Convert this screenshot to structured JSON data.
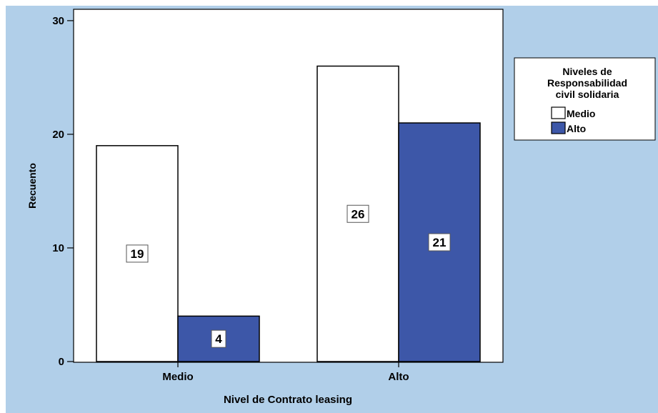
{
  "chart_data": {
    "type": "bar",
    "categories": [
      "Medio",
      "Alto"
    ],
    "series": [
      {
        "name": "Medio",
        "values": [
          19,
          26
        ],
        "color": "#ffffff"
      },
      {
        "name": "Alto",
        "values": [
          4,
          21
        ],
        "color": "#3d57a8"
      }
    ],
    "xlabel": "Nivel de Contrato leasing",
    "ylabel": "Recuento",
    "ylim": [
      0,
      31
    ],
    "yticks": [
      0,
      10,
      20,
      30
    ],
    "legend": {
      "title_lines": [
        "Niveles de",
        "Responsabilidad",
        "civil solidaria"
      ],
      "placement": "right"
    },
    "grid": false,
    "data_labels": true,
    "background_color": "#b1cfe9",
    "plot_background_color": "#ffffff"
  }
}
